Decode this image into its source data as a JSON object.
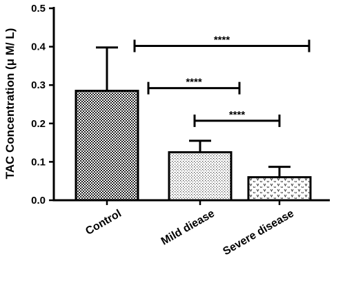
{
  "chart_data": {
    "type": "bar",
    "title": "",
    "xlabel": "",
    "ylabel": "TAC Concentration (μ M/ L)",
    "ylim": [
      0,
      0.5
    ],
    "yticks": [
      "0.0",
      "0.1",
      "0.2",
      "0.3",
      "0.4",
      "0.5"
    ],
    "categories": [
      "Control",
      "Mild diease",
      "Severe disease"
    ],
    "values": [
      0.285,
      0.125,
      0.06
    ],
    "error_upper": [
      0.398,
      0.155,
      0.087
    ],
    "patterns": [
      "checkerboard",
      "fine-dots",
      "v-marks"
    ],
    "significance": [
      {
        "from": 0,
        "to": 2,
        "label": "****",
        "y": 0.402
      },
      {
        "from": 0,
        "to": 1,
        "label": "****",
        "y": 0.292
      },
      {
        "from": 1,
        "to": 2,
        "label": "****",
        "y": 0.207
      }
    ]
  }
}
